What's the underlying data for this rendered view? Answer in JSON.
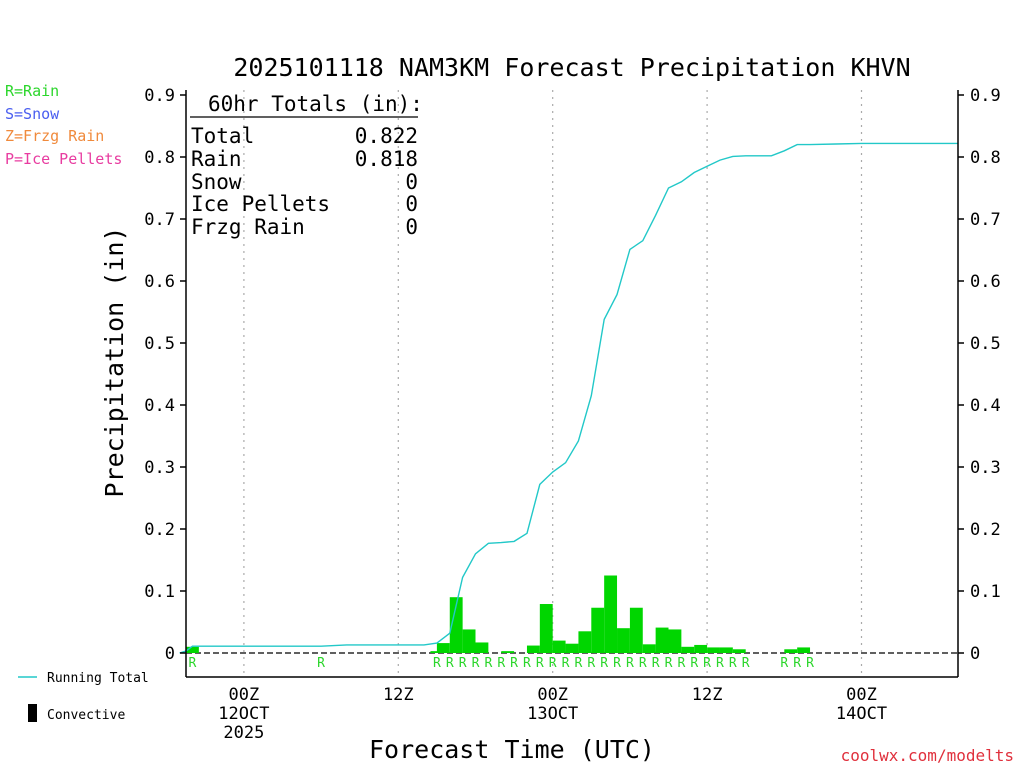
{
  "chart_data": {
    "type": "bar",
    "title": "2025101118 NAM3KM Forecast Precipitation KHVN",
    "xlabel": "Forecast Time (UTC)",
    "ylabel": "Precipitation (in)",
    "ylim": [
      0,
      0.9
    ],
    "y_ticks": [
      "0",
      "0.1",
      "0.2",
      "0.3",
      "0.4",
      "0.5",
      "0.6",
      "0.7",
      "0.8",
      "0.9"
    ],
    "xlim_hours": [
      -4.5,
      55.5
    ],
    "x_ticks": [
      {
        "hour": 0,
        "line1": "00Z",
        "line2": "12OCT",
        "line3": "2025"
      },
      {
        "hour": 12,
        "line1": "12Z",
        "line2": "",
        "line3": ""
      },
      {
        "hour": 24,
        "line1": "00Z",
        "line2": "13OCT",
        "line3": ""
      },
      {
        "hour": 36,
        "line1": "12Z",
        "line2": "",
        "line3": ""
      },
      {
        "hour": 48,
        "line1": "00Z",
        "line2": "14OCT",
        "line3": ""
      }
    ],
    "bar_hours": [
      -4,
      15,
      15.5,
      16.5,
      17.5,
      18.5,
      20.5,
      22.5,
      23.5,
      24.5,
      25.5,
      26.5,
      27.5,
      28.5,
      29.5,
      30.5,
      31.5,
      32.5,
      33.5,
      34.5,
      35.5,
      36.5,
      37.5,
      38.5,
      42.5,
      43.5
    ],
    "bar_values": [
      0.01,
      0.003,
      0.016,
      0.09,
      0.038,
      0.017,
      0.003,
      0.012,
      0.079,
      0.02,
      0.015,
      0.035,
      0.073,
      0.125,
      0.04,
      0.073,
      0.014,
      0.041,
      0.038,
      0.01,
      0.013,
      0.009,
      0.009,
      0.006,
      0.006,
      0.009
    ],
    "running_total": {
      "name": "Running Total",
      "hours": [
        -5,
        -4.5,
        -4,
        0,
        4,
        6,
        8,
        12,
        14,
        15,
        16,
        17,
        18,
        19,
        20,
        21,
        22,
        23,
        24,
        25,
        26,
        27,
        28,
        29,
        30,
        31,
        32,
        33,
        34,
        35,
        36,
        37,
        38,
        39,
        40,
        41,
        42,
        43,
        44,
        46,
        48,
        50,
        52,
        55.5
      ],
      "values": [
        0.0,
        0.003,
        0.011,
        0.011,
        0.011,
        0.011,
        0.013,
        0.013,
        0.013,
        0.016,
        0.032,
        0.122,
        0.16,
        0.177,
        0.178,
        0.18,
        0.193,
        0.272,
        0.292,
        0.307,
        0.342,
        0.415,
        0.538,
        0.578,
        0.651,
        0.665,
        0.706,
        0.75,
        0.76,
        0.775,
        0.785,
        0.795,
        0.801,
        0.802,
        0.802,
        0.802,
        0.81,
        0.82,
        0.82,
        0.821,
        0.822,
        0.822,
        0.822,
        0.822
      ]
    },
    "ptype_hours": [
      -4,
      6,
      15,
      16,
      17,
      18,
      19,
      20,
      21,
      22,
      23,
      24,
      25,
      26,
      27,
      28,
      29,
      30,
      31,
      32,
      33,
      34,
      35,
      36,
      37,
      38,
      39,
      42,
      43,
      44
    ],
    "ptype_label": "R",
    "totals_box": {
      "title": "60hr Totals (in):",
      "rows": [
        {
          "label": "Total",
          "value": "0.822"
        },
        {
          "label": "Rain",
          "value": "0.818"
        },
        {
          "label": "Snow",
          "value": "0"
        },
        {
          "label": "Ice Pellets",
          "value": "0"
        },
        {
          "label": "Frzg Rain",
          "value": "0"
        }
      ]
    },
    "legend_types": [
      {
        "text": "R=Rain",
        "color": "#2bd62b"
      },
      {
        "text": "S=Snow",
        "color": "#4a5ef0"
      },
      {
        "text": "Z=Frzg Rain",
        "color": "#f08a3c"
      },
      {
        "text": "P=Ice Pellets",
        "color": "#e83ca0"
      }
    ],
    "legend_series": [
      {
        "text": "Running Total",
        "color": "#22c8c8"
      },
      {
        "text": "Convective",
        "color": "#000000"
      }
    ],
    "colors": {
      "bar": "#00d600",
      "line": "#22c8c8",
      "axis": "#000000",
      "grid": "#aaaaaa"
    },
    "credit": "coolwx.com/modelts"
  }
}
